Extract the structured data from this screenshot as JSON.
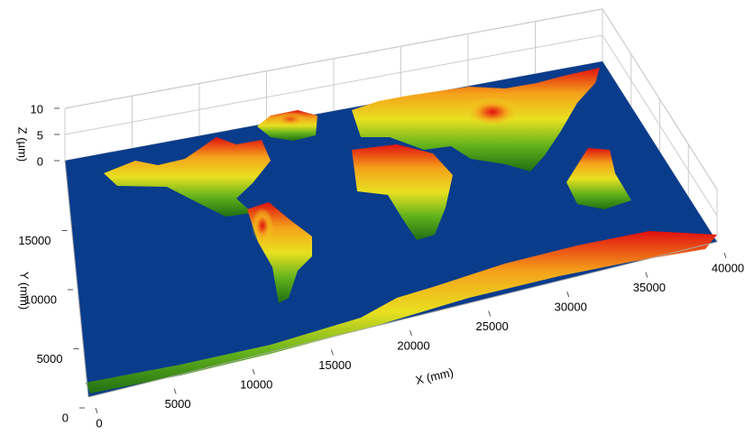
{
  "chart_data": {
    "type": "surface3d",
    "x_label": "X (mm)",
    "y_label": "Y (mm)",
    "z_label": "Z (µm)",
    "xlim": [
      0,
      40000
    ],
    "ylim": [
      0,
      20000
    ],
    "zlim": [
      0,
      10
    ],
    "xticks": [
      0,
      5000,
      10000,
      15000,
      20000,
      25000,
      30000,
      35000,
      40000
    ],
    "yticks": [
      0,
      5000,
      10000,
      15000
    ],
    "zticks": [
      0,
      5,
      10
    ],
    "grid": true,
    "floor_color": "#0a3c8c",
    "colormap": [
      "#1f6e12",
      "#62b21c",
      "#e8e020",
      "#f5a21a",
      "#e01010"
    ]
  }
}
